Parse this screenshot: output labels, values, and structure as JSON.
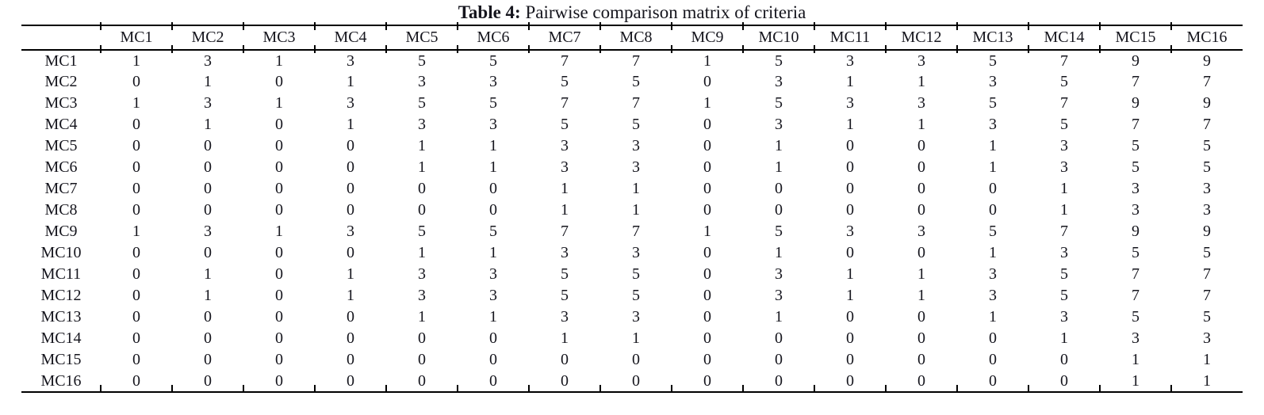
{
  "caption": {
    "label": "Table 4:",
    "text": " Pairwise comparison matrix of criteria"
  },
  "table": {
    "corner": "",
    "columns": [
      "MC1",
      "MC2",
      "MC3",
      "MC4",
      "MC5",
      "MC6",
      "MC7",
      "MC8",
      "MC9",
      "MC10",
      "MC11",
      "MC12",
      "MC13",
      "MC14",
      "MC15",
      "MC16"
    ],
    "rows": [
      {
        "label": "MC1",
        "values": [
          1,
          3,
          1,
          3,
          5,
          5,
          7,
          7,
          1,
          5,
          3,
          3,
          5,
          7,
          9,
          9
        ]
      },
      {
        "label": "MC2",
        "values": [
          0,
          1,
          0,
          1,
          3,
          3,
          5,
          5,
          0,
          3,
          1,
          1,
          3,
          5,
          7,
          7
        ]
      },
      {
        "label": "MC3",
        "values": [
          1,
          3,
          1,
          3,
          5,
          5,
          7,
          7,
          1,
          5,
          3,
          3,
          5,
          7,
          9,
          9
        ]
      },
      {
        "label": "MC4",
        "values": [
          0,
          1,
          0,
          1,
          3,
          3,
          5,
          5,
          0,
          3,
          1,
          1,
          3,
          5,
          7,
          7
        ]
      },
      {
        "label": "MC5",
        "values": [
          0,
          0,
          0,
          0,
          1,
          1,
          3,
          3,
          0,
          1,
          0,
          0,
          1,
          3,
          5,
          5
        ]
      },
      {
        "label": "MC6",
        "values": [
          0,
          0,
          0,
          0,
          1,
          1,
          3,
          3,
          0,
          1,
          0,
          0,
          1,
          3,
          5,
          5
        ]
      },
      {
        "label": "MC7",
        "values": [
          0,
          0,
          0,
          0,
          0,
          0,
          1,
          1,
          0,
          0,
          0,
          0,
          0,
          1,
          3,
          3
        ]
      },
      {
        "label": "MC8",
        "values": [
          0,
          0,
          0,
          0,
          0,
          0,
          1,
          1,
          0,
          0,
          0,
          0,
          0,
          1,
          3,
          3
        ]
      },
      {
        "label": "MC9",
        "values": [
          1,
          3,
          1,
          3,
          5,
          5,
          7,
          7,
          1,
          5,
          3,
          3,
          5,
          7,
          9,
          9
        ]
      },
      {
        "label": "MC10",
        "values": [
          0,
          0,
          0,
          0,
          1,
          1,
          3,
          3,
          0,
          1,
          0,
          0,
          1,
          3,
          5,
          5
        ]
      },
      {
        "label": "MC11",
        "values": [
          0,
          1,
          0,
          1,
          3,
          3,
          5,
          5,
          0,
          3,
          1,
          1,
          3,
          5,
          7,
          7
        ]
      },
      {
        "label": "MC12",
        "values": [
          0,
          1,
          0,
          1,
          3,
          3,
          5,
          5,
          0,
          3,
          1,
          1,
          3,
          5,
          7,
          7
        ]
      },
      {
        "label": "MC13",
        "values": [
          0,
          0,
          0,
          0,
          1,
          1,
          3,
          3,
          0,
          1,
          0,
          0,
          1,
          3,
          5,
          5
        ]
      },
      {
        "label": "MC14",
        "values": [
          0,
          0,
          0,
          0,
          0,
          0,
          1,
          1,
          0,
          0,
          0,
          0,
          0,
          1,
          3,
          3
        ]
      },
      {
        "label": "MC15",
        "values": [
          0,
          0,
          0,
          0,
          0,
          0,
          0,
          0,
          0,
          0,
          0,
          0,
          0,
          0,
          1,
          1
        ]
      },
      {
        "label": "MC16",
        "values": [
          0,
          0,
          0,
          0,
          0,
          0,
          0,
          0,
          0,
          0,
          0,
          0,
          0,
          0,
          1,
          1
        ]
      }
    ]
  }
}
